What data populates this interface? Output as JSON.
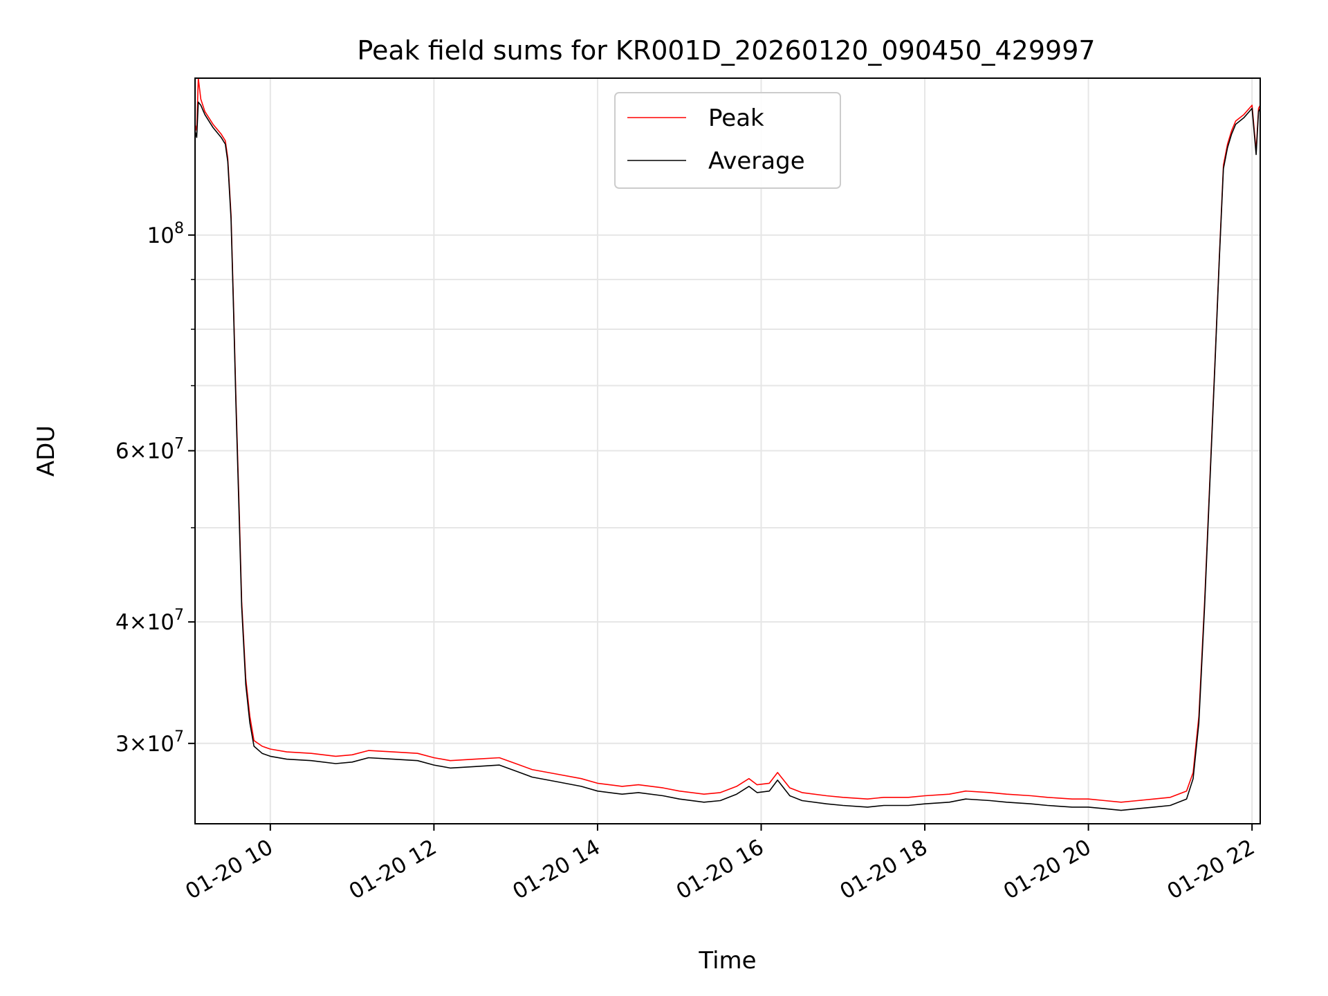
{
  "chart_data": {
    "type": "line",
    "title": "Peak field sums for KR001D_20260120_090450_429997",
    "xlabel": "Time",
    "ylabel": "ADU",
    "yscale": "log",
    "grid": true,
    "legend_position": "top-center",
    "x_unit": "hours (2026-01-20)",
    "xlim": [
      9.08,
      22.1
    ],
    "ylim": [
      24800000,
      145000000
    ],
    "x_ticks": [
      {
        "value": 10,
        "label": "01-20 10"
      },
      {
        "value": 12,
        "label": "01-20 12"
      },
      {
        "value": 14,
        "label": "01-20 14"
      },
      {
        "value": 16,
        "label": "01-20 16"
      },
      {
        "value": 18,
        "label": "01-20 18"
      },
      {
        "value": 20,
        "label": "01-20 20"
      },
      {
        "value": 22,
        "label": "01-20 22"
      }
    ],
    "y_major_ticks": [
      {
        "value": 30000000,
        "mantissa": "3",
        "exponent": "7"
      },
      {
        "value": 40000000,
        "mantissa": "4",
        "exponent": "7"
      },
      {
        "value": 60000000,
        "mantissa": "6",
        "exponent": "7"
      },
      {
        "value": 100000000,
        "mantissa": "",
        "exponent": "8"
      }
    ],
    "y_minor_ticks": [
      50000000,
      70000000,
      80000000,
      90000000
    ],
    "series": [
      {
        "name": "Peak",
        "color": "#ff0000",
        "x": [
          9.08,
          9.1,
          9.12,
          9.15,
          9.2,
          9.3,
          9.4,
          9.45,
          9.48,
          9.52,
          9.55,
          9.58,
          9.62,
          9.65,
          9.7,
          9.75,
          9.8,
          9.9,
          10.0,
          10.2,
          10.5,
          10.8,
          11.0,
          11.2,
          11.5,
          11.8,
          12.0,
          12.2,
          12.5,
          12.8,
          13.0,
          13.2,
          13.5,
          13.8,
          14.0,
          14.3,
          14.5,
          14.8,
          15.0,
          15.3,
          15.5,
          15.7,
          15.85,
          15.95,
          16.1,
          16.2,
          16.35,
          16.5,
          16.8,
          17.0,
          17.3,
          17.5,
          17.8,
          18.0,
          18.3,
          18.5,
          18.8,
          19.0,
          19.3,
          19.5,
          19.8,
          20.0,
          20.2,
          20.4,
          20.6,
          20.8,
          21.0,
          21.2,
          21.28,
          21.35,
          21.42,
          21.48,
          21.55,
          21.6,
          21.65,
          21.7,
          21.75,
          21.8,
          21.9,
          22.0,
          22.05,
          22.08,
          22.1
        ],
        "y": [
          130000000,
          128000000,
          145000000,
          138000000,
          134000000,
          130000000,
          127000000,
          125000000,
          120000000,
          105000000,
          85000000,
          68000000,
          52000000,
          42000000,
          35000000,
          32000000,
          30200000,
          29800000,
          29600000,
          29400000,
          29300000,
          29100000,
          29200000,
          29500000,
          29400000,
          29300000,
          29000000,
          28800000,
          28900000,
          29000000,
          28600000,
          28200000,
          27900000,
          27600000,
          27300000,
          27100000,
          27200000,
          27000000,
          26800000,
          26600000,
          26700000,
          27100000,
          27600000,
          27200000,
          27300000,
          28000000,
          27000000,
          26700000,
          26500000,
          26400000,
          26300000,
          26400000,
          26400000,
          26500000,
          26600000,
          26800000,
          26700000,
          26600000,
          26500000,
          26400000,
          26300000,
          26300000,
          26200000,
          26100000,
          26200000,
          26300000,
          26400000,
          26800000,
          28000000,
          32000000,
          42000000,
          55000000,
          75000000,
          95000000,
          118000000,
          124000000,
          128000000,
          131000000,
          133000000,
          136000000,
          122000000,
          135000000,
          136000000
        ]
      },
      {
        "name": "Average",
        "color": "#000000",
        "x": [
          9.08,
          9.1,
          9.12,
          9.15,
          9.2,
          9.3,
          9.4,
          9.45,
          9.48,
          9.52,
          9.55,
          9.58,
          9.62,
          9.65,
          9.7,
          9.75,
          9.8,
          9.9,
          10.0,
          10.2,
          10.5,
          10.8,
          11.0,
          11.2,
          11.5,
          11.8,
          12.0,
          12.2,
          12.5,
          12.8,
          13.0,
          13.2,
          13.5,
          13.8,
          14.0,
          14.3,
          14.5,
          14.8,
          15.0,
          15.3,
          15.5,
          15.7,
          15.85,
          15.95,
          16.1,
          16.2,
          16.35,
          16.5,
          16.8,
          17.0,
          17.3,
          17.5,
          17.8,
          18.0,
          18.3,
          18.5,
          18.8,
          19.0,
          19.3,
          19.5,
          19.8,
          20.0,
          20.2,
          20.4,
          20.6,
          20.8,
          21.0,
          21.2,
          21.28,
          21.35,
          21.42,
          21.48,
          21.55,
          21.6,
          21.65,
          21.7,
          21.75,
          21.8,
          21.9,
          22.0,
          22.05,
          22.08,
          22.1
        ],
        "y": [
          128000000,
          126000000,
          137000000,
          136000000,
          133000000,
          129000000,
          126000000,
          124000000,
          119000000,
          104000000,
          84000000,
          67000000,
          51000000,
          41500000,
          34500000,
          31500000,
          29800000,
          29300000,
          29100000,
          28900000,
          28800000,
          28600000,
          28700000,
          29000000,
          28900000,
          28800000,
          28500000,
          28300000,
          28400000,
          28500000,
          28100000,
          27700000,
          27400000,
          27100000,
          26800000,
          26600000,
          26700000,
          26500000,
          26300000,
          26100000,
          26200000,
          26600000,
          27100000,
          26700000,
          26800000,
          27500000,
          26500000,
          26200000,
          26000000,
          25900000,
          25800000,
          25900000,
          25900000,
          26000000,
          26100000,
          26300000,
          26200000,
          26100000,
          26000000,
          25900000,
          25800000,
          25800000,
          25700000,
          25600000,
          25700000,
          25800000,
          25900000,
          26300000,
          27600000,
          31500000,
          41500000,
          54500000,
          74500000,
          94500000,
          117000000,
          123000000,
          127000000,
          130000000,
          132000000,
          135000000,
          121000000,
          134000000,
          135000000
        ]
      }
    ]
  }
}
